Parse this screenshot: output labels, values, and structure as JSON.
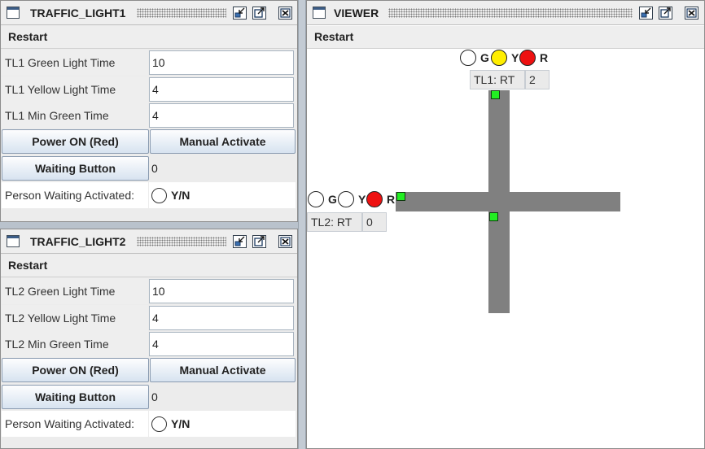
{
  "tl1": {
    "title": "TRAFFIC_LIGHT1",
    "restart": "Restart",
    "green_label": "TL1 Green Light Time",
    "green_value": "10",
    "yellow_label": "TL1 Yellow Light Time",
    "yellow_value": "4",
    "min_green_label": "TL1 Min Green Time",
    "min_green_value": "4",
    "power_button": "Power ON (Red)",
    "manual_button": "Manual Activate",
    "waiting_button": "Waiting Button",
    "waiting_count": "0",
    "person_label": "Person Waiting Activated:",
    "person_radio": "Y/N"
  },
  "tl2": {
    "title": "TRAFFIC_LIGHT2",
    "restart": "Restart",
    "green_label": "TL2 Green Light Time",
    "green_value": "10",
    "yellow_label": "TL2 Yellow Light Time",
    "yellow_value": "4",
    "min_green_label": "TL2 Min Green Time",
    "min_green_value": "4",
    "power_button": "Power ON (Red)",
    "manual_button": "Manual Activate",
    "waiting_button": "Waiting Button",
    "waiting_count": "0",
    "person_label": "Person Waiting Activated:",
    "person_radio": "Y/N"
  },
  "viewer": {
    "title": "VIEWER",
    "restart": "Restart",
    "tl1": {
      "g": "G",
      "y": "Y",
      "r": "R",
      "status_label": "TL1: RT",
      "status_value": "2",
      "active": "yellow-red"
    },
    "tl2": {
      "g": "G",
      "y": "Y",
      "r": "R",
      "status_label": "TL2: RT",
      "status_value": "0",
      "active": "red"
    }
  },
  "colors": {
    "light_off": "#ffffff",
    "yellow_on": "#ffee00",
    "red_on": "#ee1111",
    "road": "#808080",
    "sensor": "#22ee22"
  }
}
